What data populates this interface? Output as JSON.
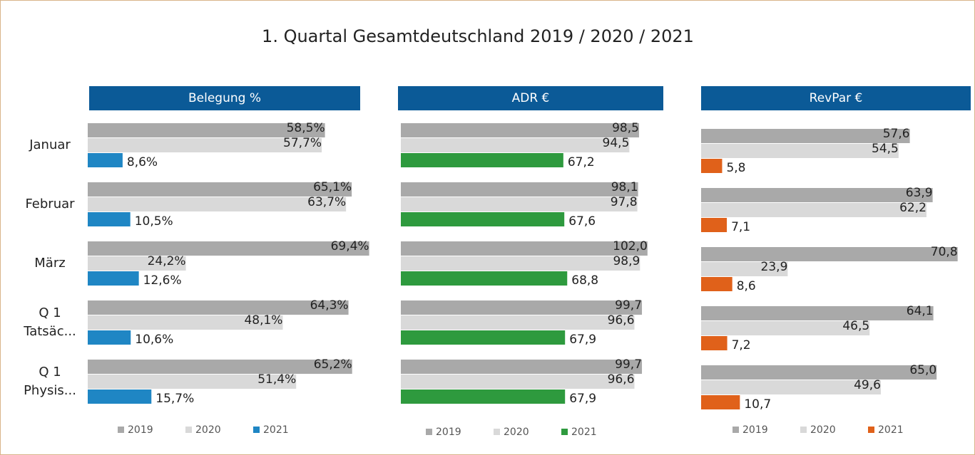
{
  "title": "1. Quartal Gesamtdeutschland 2019 / 2020 / 2021",
  "chart_data": [
    {
      "type": "barh",
      "title": "Belegung %",
      "categories": [
        "Januar",
        "Februar",
        "März",
        "Q 1\nTatsäc...",
        "Q 1\nPhysis..."
      ],
      "xlim": [
        0,
        70
      ],
      "series": [
        {
          "name": "2019",
          "color": "#a9a9a9",
          "values": [
            58.5,
            65.1,
            69.4,
            64.3,
            65.2
          ],
          "value_labels": [
            "58,5%",
            "65,1%",
            "69,4%",
            "64,3%",
            "65,2%"
          ]
        },
        {
          "name": "2020",
          "color": "#d9d9d9",
          "values": [
            57.7,
            63.7,
            24.2,
            48.1,
            51.4
          ],
          "value_labels": [
            "57,7%",
            "63,7%",
            "24,2%",
            "48,1%",
            "51,4%"
          ]
        },
        {
          "name": "2021",
          "color": "#1f86c4",
          "values": [
            8.6,
            10.5,
            12.6,
            10.6,
            15.7
          ],
          "value_labels": [
            "8,6%",
            "10,5%",
            "12,6%",
            "10,6%",
            "15,7%"
          ]
        }
      ]
    },
    {
      "type": "barh",
      "title": "ADR €",
      "xlim": [
        0,
        105
      ],
      "series": [
        {
          "name": "2019",
          "color": "#a9a9a9",
          "values": [
            98.5,
            98.1,
            102.0,
            99.7,
            99.7
          ],
          "value_labels": [
            "98,5",
            "98,1",
            "102,0",
            "99,7",
            "99,7"
          ]
        },
        {
          "name": "2020",
          "color": "#d9d9d9",
          "values": [
            94.5,
            97.8,
            98.9,
            96.6,
            96.6
          ],
          "value_labels": [
            "94,5",
            "97,8",
            "98,9",
            "96,6",
            "96,6"
          ]
        },
        {
          "name": "2021",
          "color": "#2e9a3e",
          "values": [
            67.2,
            67.6,
            68.8,
            67.9,
            67.9
          ],
          "value_labels": [
            "67,2",
            "67,6",
            "68,8",
            "67,9",
            "67,9"
          ]
        }
      ]
    },
    {
      "type": "barh",
      "title": "RevPar €",
      "xlim": [
        0,
        75
      ],
      "series": [
        {
          "name": "2019",
          "color": "#a9a9a9",
          "values": [
            57.6,
            63.9,
            70.8,
            64.1,
            65.0
          ],
          "value_labels": [
            "57,6",
            "63,9",
            "70,8",
            "64,1",
            "65,0"
          ]
        },
        {
          "name": "2020",
          "color": "#d9d9d9",
          "values": [
            54.5,
            62.2,
            23.9,
            46.5,
            49.6
          ],
          "value_labels": [
            "54,5",
            "62,2",
            "23,9",
            "46,5",
            "49,6"
          ]
        },
        {
          "name": "2021",
          "color": "#e0611a",
          "values": [
            5.8,
            7.1,
            8.6,
            7.2,
            10.7
          ],
          "value_labels": [
            "5,8",
            "7,1",
            "8,6",
            "7,2",
            "10,7"
          ]
        }
      ]
    }
  ]
}
